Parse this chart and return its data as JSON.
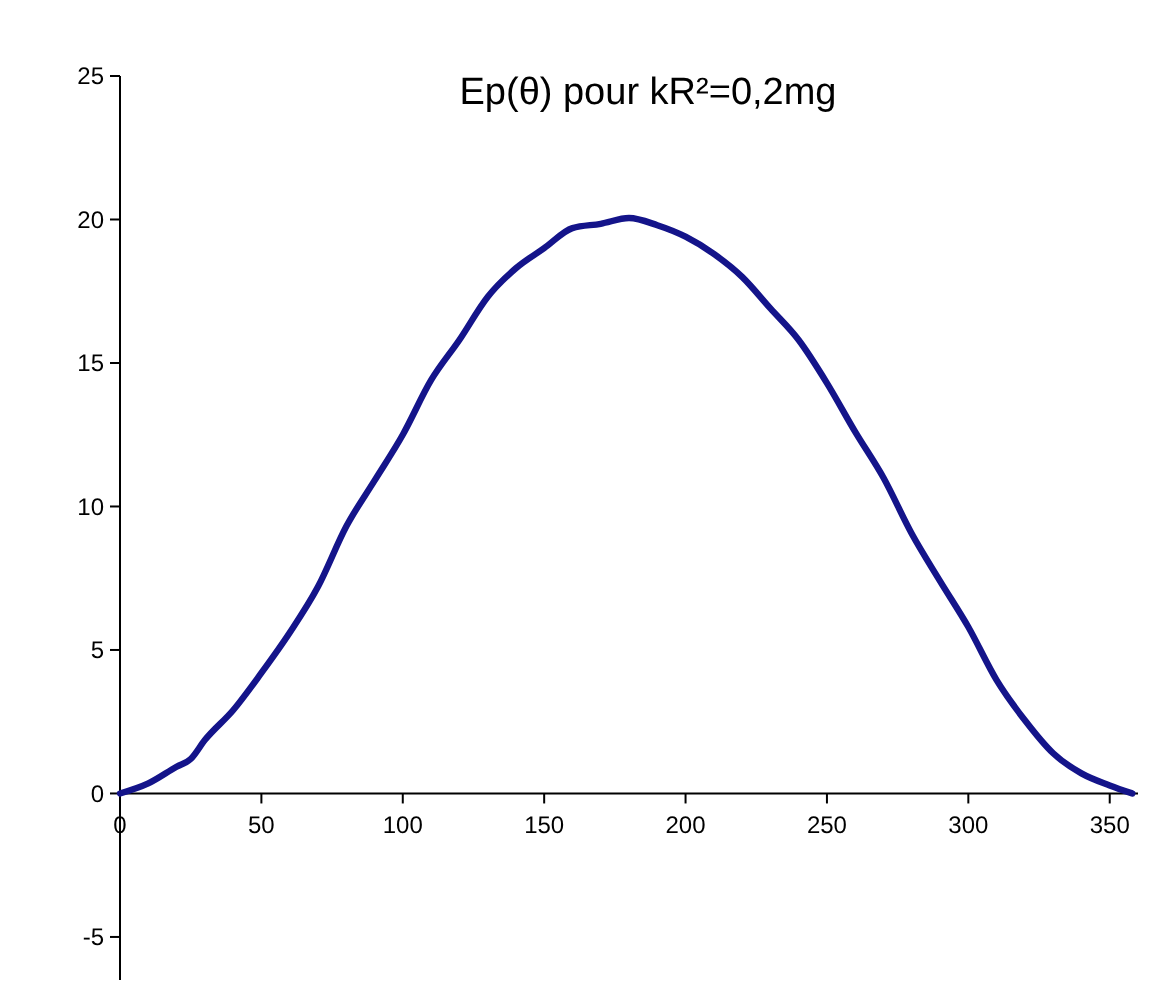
{
  "chart_data": {
    "type": "line",
    "title": "Ep(θ) pour kR²=0,2mg",
    "series": [
      {
        "color": "#14148a",
        "x": [
          0,
          10,
          20,
          25,
          30,
          40,
          50,
          60,
          70,
          80,
          90,
          100,
          110,
          120,
          130,
          140,
          150,
          160,
          170,
          180,
          190,
          200,
          210,
          220,
          230,
          240,
          250,
          260,
          270,
          280,
          290,
          300,
          310,
          320,
          330,
          340,
          350,
          358
        ],
        "values": [
          0,
          0.35,
          0.93,
          1.2,
          1.86,
          2.9,
          4.2,
          5.6,
          7.2,
          9.3,
          10.9,
          12.5,
          14.4,
          15.8,
          17.3,
          18.3,
          19.0,
          19.7,
          19.85,
          20.05,
          19.8,
          19.4,
          18.8,
          18.0,
          16.9,
          15.8,
          14.3,
          12.6,
          11.0,
          9.05,
          7.4,
          5.8,
          3.95,
          2.55,
          1.4,
          0.7,
          0.28,
          0
        ]
      }
    ],
    "xlim": [
      0,
      360
    ],
    "xticks": [
      0,
      50,
      100,
      150,
      200,
      250,
      300,
      350
    ],
    "ylim": [
      -6.5,
      25
    ],
    "yticks": [
      -5,
      0,
      5,
      10,
      15,
      20,
      25
    ],
    "marker": "none",
    "line_style": "solid"
  }
}
